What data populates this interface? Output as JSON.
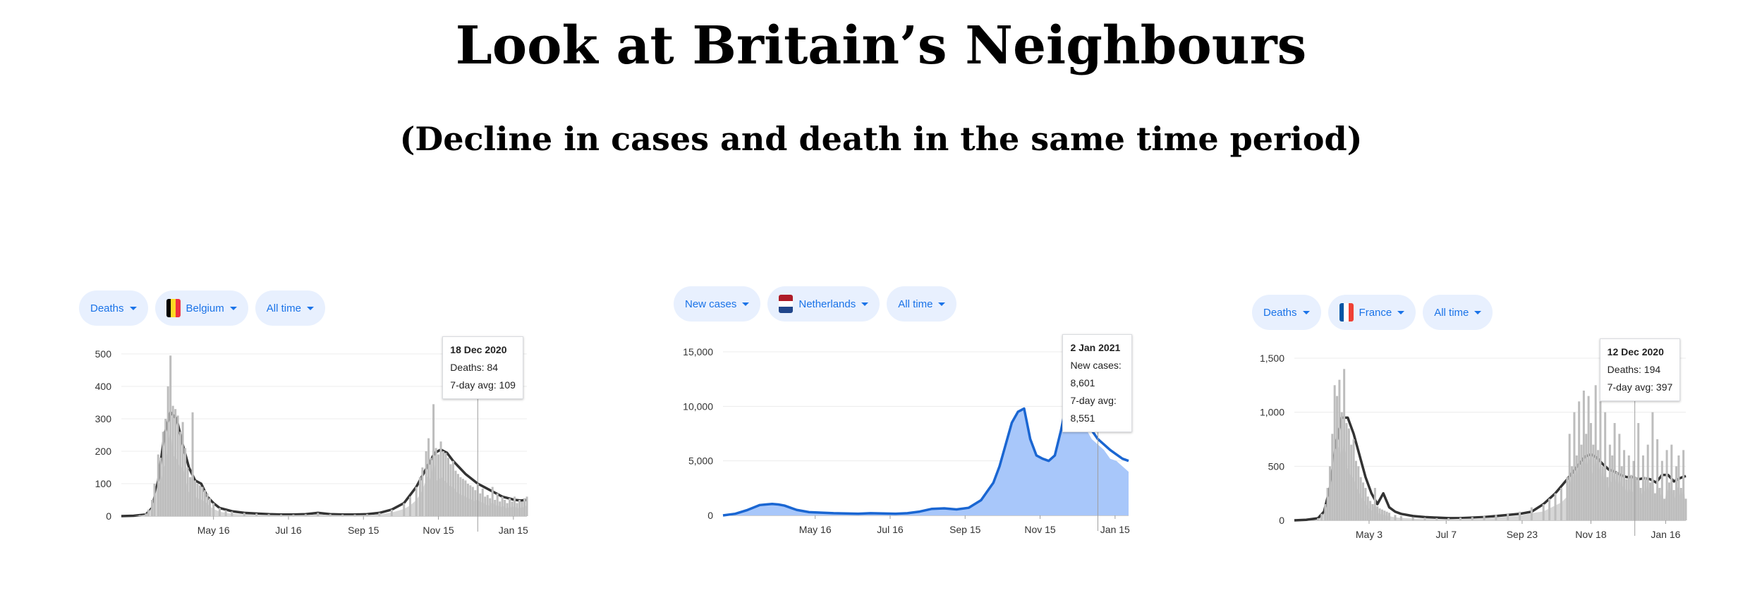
{
  "title": "Look at Britain’s Neighbours",
  "subtitle": "(Decline in cases and death in the same time period)",
  "colors": {
    "chip_bg": "#e8f0fe",
    "chip_text": "#1a73e8",
    "grey_bar": "#bdbdbd",
    "grey_line": "#333333",
    "blue_area": "#a8c7fa",
    "blue_line": "#1a66d2"
  },
  "chart_data": [
    {
      "type": "area",
      "controls": {
        "metric": "Deaths",
        "country": "Belgium",
        "range": "All time"
      },
      "flag_icon": "belgium-flag-icon",
      "ylim": [
        0,
        500
      ],
      "yticks": [
        0,
        100,
        200,
        300,
        400,
        500
      ],
      "ytick_labels": [
        "0",
        "100",
        "200",
        "300",
        "400",
        "500"
      ],
      "x_domain": [
        0,
        330
      ],
      "xticks": [
        {
          "label": "May 16",
          "x": 75
        },
        {
          "label": "Jul 16",
          "x": 136
        },
        {
          "label": "Sep 15",
          "x": 197
        },
        {
          "label": "Nov 15",
          "x": 258
        },
        {
          "label": "Jan 15",
          "x": 319
        }
      ],
      "series": [
        {
          "style": "line",
          "x": [
            0,
            10,
            20,
            25,
            30,
            35,
            40,
            45,
            50,
            55,
            60,
            65,
            70,
            75,
            80,
            90,
            100,
            110,
            120,
            130,
            140,
            150,
            160,
            170,
            180,
            190,
            200,
            210,
            220,
            230,
            240,
            250,
            255,
            260,
            265,
            270,
            275,
            280,
            285,
            290,
            295,
            300,
            305,
            310,
            315,
            320,
            325,
            330
          ],
          "values": [
            0,
            1,
            5,
            25,
            110,
            250,
            320,
            300,
            220,
            150,
            110,
            100,
            60,
            40,
            25,
            15,
            10,
            8,
            6,
            5,
            5,
            6,
            10,
            6,
            5,
            5,
            6,
            10,
            20,
            40,
            90,
            160,
            195,
            205,
            195,
            170,
            150,
            130,
            115,
            100,
            90,
            80,
            70,
            60,
            55,
            50,
            48,
            50
          ]
        },
        {
          "style": "bars",
          "x": [
            10,
            15,
            20,
            22,
            25,
            27,
            30,
            32,
            34,
            36,
            38,
            40,
            42,
            44,
            46,
            48,
            50,
            52,
            54,
            56,
            58,
            60,
            62,
            64,
            66,
            68,
            70,
            72,
            75,
            80,
            85,
            90,
            100,
            110,
            120,
            130,
            140,
            150,
            160,
            170,
            180,
            190,
            200,
            210,
            220,
            230,
            235,
            240,
            243,
            245,
            248,
            250,
            252,
            254,
            256,
            258,
            260,
            262,
            264,
            266,
            268,
            270,
            272,
            274,
            276,
            278,
            280,
            282,
            284,
            286,
            288,
            290,
            292,
            294,
            296,
            298,
            300,
            302,
            304,
            306,
            308,
            310,
            312,
            314,
            316,
            318,
            320,
            322,
            324,
            326,
            328,
            330
          ],
          "values": [
            0,
            3,
            8,
            20,
            50,
            100,
            190,
            180,
            260,
            300,
            400,
            495,
            340,
            330,
            310,
            260,
            290,
            210,
            150,
            120,
            320,
            110,
            100,
            95,
            90,
            80,
            70,
            55,
            40,
            25,
            18,
            14,
            10,
            8,
            6,
            5,
            5,
            6,
            10,
            6,
            5,
            5,
            6,
            10,
            20,
            40,
            60,
            90,
            120,
            150,
            200,
            240,
            180,
            345,
            210,
            190,
            230,
            200,
            195,
            180,
            160,
            170,
            140,
            130,
            120,
            115,
            110,
            100,
            95,
            90,
            80,
            100,
            70,
            85,
            60,
            65,
            55,
            90,
            50,
            70,
            45,
            60,
            50,
            40,
            55,
            45,
            60,
            40,
            50,
            45,
            55,
            60
          ]
        }
      ],
      "tooltip": {
        "date": "18 Dec 2020",
        "line1": "Deaths: 84",
        "line2": "7-day avg: 109",
        "x": 290
      }
    },
    {
      "type": "area",
      "controls": {
        "metric": "New cases",
        "country": "Netherlands",
        "range": "All time"
      },
      "flag_icon": "netherlands-flag-icon",
      "ylim": [
        0,
        15000
      ],
      "yticks": [
        0,
        5000,
        10000,
        15000
      ],
      "ytick_labels": [
        "0",
        "5,000",
        "10,000",
        "15,000"
      ],
      "x_domain": [
        0,
        330
      ],
      "xticks": [
        {
          "label": "May 16",
          "x": 75
        },
        {
          "label": "Jul 16",
          "x": 136
        },
        {
          "label": "Sep 15",
          "x": 197
        },
        {
          "label": "Nov 15",
          "x": 258
        },
        {
          "label": "Jan 15",
          "x": 319
        }
      ],
      "series": [
        {
          "style": "area",
          "x": [
            0,
            10,
            20,
            30,
            35,
            40,
            45,
            50,
            55,
            60,
            70,
            80,
            90,
            100,
            110,
            120,
            130,
            140,
            150,
            160,
            170,
            180,
            190,
            200,
            210,
            220,
            225,
            230,
            235,
            240,
            245,
            250,
            255,
            260,
            265,
            270,
            275,
            280,
            285,
            290,
            295,
            300,
            305,
            310,
            315,
            320,
            325,
            330
          ],
          "values": [
            0,
            150,
            500,
            950,
            1000,
            1050,
            1000,
            900,
            700,
            500,
            300,
            250,
            200,
            180,
            150,
            200,
            180,
            150,
            200,
            350,
            600,
            650,
            550,
            700,
            1400,
            3000,
            4500,
            6500,
            8500,
            9500,
            9800,
            7000,
            5500,
            5200,
            5000,
            5500,
            7800,
            10500,
            11400,
            10000,
            8000,
            7000,
            6500,
            6000,
            5200,
            5000,
            4500,
            4000
          ]
        },
        {
          "style": "line",
          "x": [
            0,
            10,
            20,
            30,
            35,
            40,
            45,
            50,
            55,
            60,
            70,
            80,
            90,
            100,
            110,
            120,
            130,
            140,
            150,
            160,
            170,
            180,
            190,
            200,
            210,
            220,
            225,
            230,
            235,
            240,
            245,
            250,
            255,
            260,
            265,
            270,
            275,
            280,
            285,
            290,
            295,
            300,
            305,
            310,
            315,
            320,
            325,
            330
          ],
          "values": [
            0,
            150,
            500,
            950,
            1000,
            1050,
            1000,
            900,
            700,
            500,
            300,
            250,
            200,
            180,
            150,
            200,
            180,
            150,
            200,
            350,
            600,
            650,
            550,
            700,
            1400,
            3000,
            4500,
            6500,
            8500,
            9500,
            9800,
            7000,
            5500,
            5200,
            5000,
            5500,
            7800,
            10500,
            11400,
            10200,
            8400,
            7800,
            7000,
            6500,
            6000,
            5600,
            5200,
            5000
          ]
        }
      ],
      "tooltip": {
        "date": "2 Jan 2021",
        "line1": "New cases: 8,601",
        "line2": "7-day avg: 8,551",
        "x": 305
      }
    },
    {
      "type": "area",
      "controls": {
        "metric": "Deaths",
        "country": "France",
        "range": "All time"
      },
      "flag_icon": "france-flag-icon",
      "ylim": [
        0,
        1500
      ],
      "yticks": [
        0,
        500,
        1000,
        1500
      ],
      "ytick_labels": [
        "0",
        "500",
        "1,000",
        "1,500"
      ],
      "x_domain": [
        0,
        330
      ],
      "xticks": [
        {
          "label": "May 3",
          "x": 63
        },
        {
          "label": "Jul 7",
          "x": 128
        },
        {
          "label": "Sep 23",
          "x": 192
        },
        {
          "label": "Nov 18",
          "x": 250
        },
        {
          "label": "Jan 16",
          "x": 313
        }
      ],
      "series": [
        {
          "style": "line",
          "x": [
            0,
            10,
            20,
            25,
            30,
            35,
            40,
            45,
            50,
            55,
            60,
            65,
            70,
            75,
            80,
            85,
            90,
            100,
            110,
            120,
            130,
            140,
            150,
            160,
            170,
            180,
            190,
            200,
            210,
            220,
            230,
            235,
            240,
            245,
            250,
            255,
            260,
            265,
            270,
            275,
            280,
            285,
            290,
            295,
            300,
            305,
            310,
            315,
            320,
            325,
            330
          ],
          "values": [
            0,
            5,
            20,
            80,
            300,
            700,
            950,
            950,
            800,
            600,
            400,
            250,
            150,
            250,
            120,
            80,
            60,
            40,
            30,
            25,
            20,
            20,
            25,
            30,
            40,
            50,
            60,
            80,
            150,
            250,
            380,
            450,
            520,
            590,
            610,
            580,
            520,
            470,
            450,
            420,
            400,
            400,
            380,
            390,
            380,
            350,
            420,
            420,
            360,
            390,
            410
          ]
        },
        {
          "style": "bars",
          "x": [
            20,
            23,
            26,
            28,
            30,
            32,
            34,
            36,
            38,
            40,
            42,
            44,
            46,
            48,
            50,
            52,
            54,
            56,
            58,
            60,
            62,
            64,
            66,
            68,
            70,
            72,
            74,
            76,
            78,
            80,
            85,
            90,
            100,
            110,
            120,
            130,
            140,
            150,
            160,
            170,
            180,
            190,
            200,
            210,
            215,
            220,
            225,
            230,
            232,
            234,
            236,
            238,
            240,
            242,
            244,
            246,
            248,
            250,
            252,
            254,
            256,
            258,
            260,
            262,
            264,
            266,
            268,
            270,
            272,
            274,
            276,
            278,
            280,
            282,
            284,
            286,
            288,
            290,
            292,
            294,
            296,
            298,
            300,
            302,
            304,
            306,
            308,
            310,
            312,
            314,
            316,
            318,
            320,
            322,
            324,
            326,
            328,
            330
          ],
          "values": [
            20,
            60,
            150,
            300,
            500,
            800,
            1250,
            1150,
            1300,
            1000,
            1400,
            900,
            850,
            700,
            750,
            550,
            500,
            400,
            350,
            300,
            220,
            180,
            150,
            300,
            130,
            110,
            100,
            90,
            80,
            70,
            50,
            40,
            30,
            25,
            20,
            20,
            25,
            30,
            40,
            50,
            60,
            80,
            120,
            150,
            200,
            250,
            300,
            400,
            800,
            500,
            1000,
            600,
            1100,
            700,
            1200,
            800,
            1150,
            900,
            700,
            1250,
            650,
            1100,
            500,
            1000,
            400,
            700,
            600,
            900,
            450,
            800,
            500,
            650,
            380,
            600,
            420,
            550,
            400,
            900,
            300,
            600,
            400,
            700,
            350,
            1000,
            250,
            750,
            300,
            550,
            200,
            650,
            350,
            700,
            280,
            500,
            600,
            300,
            650,
            200
          ]
        }
      ],
      "tooltip": {
        "date": "12 Dec 2020",
        "line1": "Deaths: 194",
        "line2": "7-day avg: 397",
        "x": 287
      }
    }
  ]
}
